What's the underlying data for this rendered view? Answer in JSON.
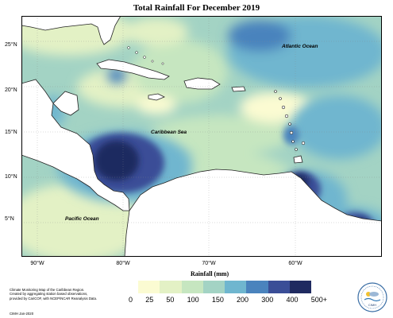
{
  "title": "Total Rainfall For December 2019",
  "map_labels": {
    "atlantic": "Atlantic Ocean",
    "caribbean": "Caribbean Sea",
    "pacific": "Pacific Ocean"
  },
  "lat_ticks": [
    "25°N",
    "20°N",
    "15°N",
    "10°N",
    "5°N"
  ],
  "lon_ticks": [
    "90°W",
    "80°W",
    "70°W",
    "60°W"
  ],
  "legend": {
    "title": "Rainfall (mm)",
    "ticks": [
      "0",
      "25",
      "50",
      "100",
      "150",
      "200",
      "300",
      "400",
      "500+"
    ],
    "colors": [
      "#fbfbd2",
      "#e3f1c5",
      "#c6e6c0",
      "#a3d3c4",
      "#6fb6cf",
      "#4a83bd",
      "#3a4e97",
      "#1f2a60"
    ]
  },
  "credit": {
    "lines": [
      "Climate Monitoring Map of the Caribbean Region.",
      "Created by aggregating station based observations,",
      "provided by CariCOF, with NCEP/NCAR Reanalysis Data."
    ],
    "date": "CIMH Jan-2020"
  },
  "logo_text": "CIMH",
  "colors": {
    "land": "#ffffff",
    "coast": "#222222"
  }
}
